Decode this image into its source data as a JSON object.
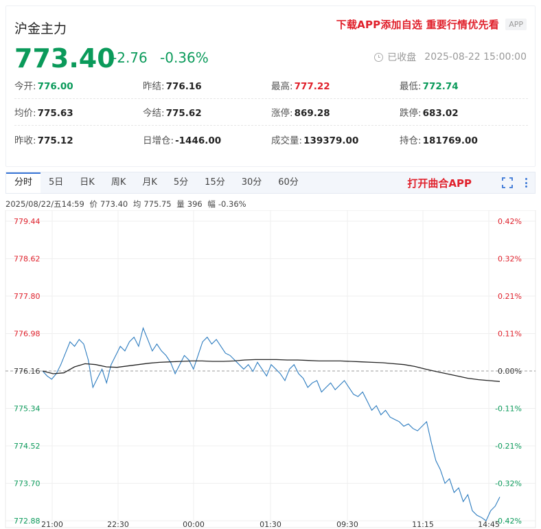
{
  "header": {
    "title": "沪金主力",
    "promo": "下载APP添加自选 重要行情优先看",
    "app_tag": "APP",
    "price": "773.40",
    "change": "-2.76",
    "change_pct": "-0.36%",
    "status": "已收盘",
    "datetime": "2025-08-22 15:00:00"
  },
  "quotes": [
    [
      {
        "label": "今开:",
        "value": "776.00",
        "color": "green"
      },
      {
        "label": "昨结:",
        "value": "776.16"
      },
      {
        "label": "最高:",
        "value": "777.22",
        "color": "red"
      },
      {
        "label": "最低:",
        "value": "772.74",
        "color": "green"
      }
    ],
    [
      {
        "label": "均价:",
        "value": "775.63"
      },
      {
        "label": "今结:",
        "value": "775.62"
      },
      {
        "label": "涨停:",
        "value": "869.28"
      },
      {
        "label": "跌停:",
        "value": "683.02"
      }
    ],
    [
      {
        "label": "昨收:",
        "value": "775.12"
      },
      {
        "label": "日增仓:",
        "value": "-1446.00"
      },
      {
        "label": "成交量:",
        "value": "139379.00"
      },
      {
        "label": "持仓:",
        "value": "181769.00"
      }
    ]
  ],
  "tabs": [
    "分时",
    "5日",
    "日K",
    "周K",
    "月K",
    "5分",
    "15分",
    "30分",
    "60分"
  ],
  "active_tab": 0,
  "tab_promo": "打开曲合APP",
  "info": {
    "datetime": "2025/08/22/五14:59",
    "price_label": "价",
    "price": "773.40",
    "avg_label": "均",
    "avg": "775.75",
    "vol_label": "量",
    "vol": "396",
    "amp_label": "幅",
    "amp": "-0.36%"
  },
  "colors": {
    "up": "#e0202b",
    "down": "#0a9a5a",
    "price_line": "#2b7bbf",
    "avg_line": "#222222",
    "accent": "#3a76d6"
  },
  "chart_data": {
    "type": "line",
    "y_left_ticks": [
      "779.44",
      "778.62",
      "777.80",
      "776.98",
      "776.16",
      "775.34",
      "774.52",
      "773.70",
      "772.88"
    ],
    "y_right_ticks": [
      "0.42%",
      "0.32%",
      "0.21%",
      "0.11%",
      "0.00%",
      "-0.11%",
      "-0.21%",
      "-0.32%",
      "-0.42%"
    ],
    "x_ticks": [
      "21:00",
      "22:30",
      "00:00",
      "01:30",
      "09:30",
      "11:15",
      "14:45"
    ],
    "ylim": [
      772.88,
      779.44
    ],
    "reference": 776.16,
    "series": [
      {
        "values": [
          776.16,
          776.05,
          775.98,
          776.1,
          776.3,
          776.55,
          776.8,
          776.7,
          776.85,
          776.75,
          776.4,
          775.8,
          776.0,
          776.2,
          775.9,
          776.3,
          776.5,
          776.7,
          776.6,
          776.8,
          776.9,
          776.7,
          777.1,
          776.85,
          776.6,
          776.75,
          776.6,
          776.5,
          776.35,
          776.1,
          776.3,
          776.5,
          776.4,
          776.2,
          776.5,
          776.8,
          776.9,
          776.75,
          776.85,
          776.7,
          776.55,
          776.5,
          776.4,
          776.3,
          776.2,
          776.3,
          776.15,
          776.35,
          776.2,
          776.05,
          776.3,
          776.2,
          776.1,
          775.95,
          776.2,
          776.3,
          776.1,
          776.0,
          775.8,
          775.9,
          775.95,
          775.7,
          775.8,
          775.9,
          775.75,
          775.85,
          775.95,
          775.8,
          775.65,
          775.6,
          775.7,
          775.5,
          775.3,
          775.4,
          775.2,
          775.3,
          775.15,
          775.1,
          775.05,
          774.95,
          775.0,
          774.9,
          774.85,
          774.95,
          775.05,
          774.6,
          774.2,
          774.0,
          773.7,
          773.8,
          773.5,
          773.6,
          773.3,
          773.45,
          773.1,
          773.0,
          772.95,
          772.88,
          773.1,
          773.2,
          773.4
        ],
        "name": ""
      },
      {
        "values": [
          776.16,
          776.1,
          776.12,
          776.25,
          776.32,
          776.3,
          776.25,
          776.24,
          776.27,
          776.3,
          776.33,
          776.35,
          776.36,
          776.37,
          776.38,
          776.38,
          776.37,
          776.37,
          776.38,
          776.4,
          776.41,
          776.41,
          776.41,
          776.4,
          776.4,
          776.39,
          776.38,
          776.38,
          776.38,
          776.37,
          776.36,
          776.35,
          776.34,
          776.32,
          776.3,
          776.26,
          776.2,
          776.15,
          776.1,
          776.05,
          776.0,
          775.97,
          775.95,
          775.93
        ],
        "name": ""
      }
    ]
  }
}
